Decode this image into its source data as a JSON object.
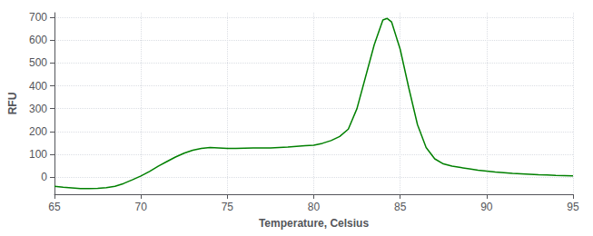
{
  "chart_data": {
    "type": "line",
    "title": "",
    "xlabel": "Temperature, Celsius",
    "ylabel": "RFU",
    "color": "#008000",
    "x": [
      65.0,
      65.5,
      66.0,
      66.5,
      67.0,
      67.5,
      68.0,
      68.5,
      69.0,
      69.5,
      70.0,
      70.5,
      71.0,
      71.5,
      72.0,
      72.5,
      73.0,
      73.5,
      74.0,
      74.5,
      75.0,
      75.5,
      76.0,
      76.5,
      77.0,
      77.5,
      78.0,
      78.5,
      79.0,
      79.5,
      80.0,
      80.5,
      81.0,
      81.5,
      82.0,
      82.5,
      83.0,
      83.5,
      84.0,
      84.25,
      84.5,
      85.0,
      85.5,
      86.0,
      86.5,
      87.0,
      87.5,
      88.0,
      88.5,
      89.0,
      89.5,
      90.0,
      90.5,
      91.0,
      91.5,
      92.0,
      92.5,
      93.0,
      93.5,
      94.0,
      94.5,
      95.0
    ],
    "values": [
      -40,
      -44,
      -47,
      -50,
      -50,
      -49,
      -46,
      -40,
      -28,
      -12,
      5,
      25,
      48,
      68,
      88,
      105,
      118,
      126,
      130,
      128,
      126,
      126,
      127,
      128,
      128,
      128,
      130,
      132,
      135,
      138,
      140,
      148,
      160,
      178,
      210,
      300,
      440,
      580,
      688,
      695,
      680,
      560,
      390,
      230,
      130,
      80,
      58,
      48,
      42,
      36,
      30,
      26,
      22,
      19,
      16,
      14,
      12,
      10,
      9,
      7,
      6,
      5
    ],
    "xlim": [
      65,
      95
    ],
    "ylim": [
      -75,
      720
    ],
    "xticks": [
      65,
      70,
      75,
      80,
      85,
      90,
      95
    ],
    "yticks": [
      0,
      100,
      200,
      300,
      400,
      500,
      600,
      700
    ],
    "grid": true
  }
}
